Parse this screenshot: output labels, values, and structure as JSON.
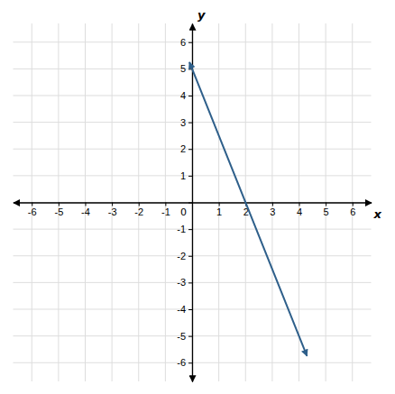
{
  "chart_data": {
    "type": "line",
    "x": [
      -0.1,
      4.3
    ],
    "values": [
      5.25,
      -5.75
    ],
    "color": "#2E5F8A",
    "xlabel": "x",
    "ylabel": "y",
    "xlim": [
      -6.7,
      6.7
    ],
    "ylim": [
      -6.7,
      6.7
    ],
    "xticks": [
      -6,
      -5,
      -4,
      -3,
      -2,
      -1,
      0,
      1,
      2,
      3,
      4,
      5,
      6
    ],
    "yticks": [
      -6,
      -5,
      -4,
      -3,
      -2,
      -1,
      0,
      1,
      2,
      3,
      4,
      5,
      6
    ],
    "grid": true
  }
}
